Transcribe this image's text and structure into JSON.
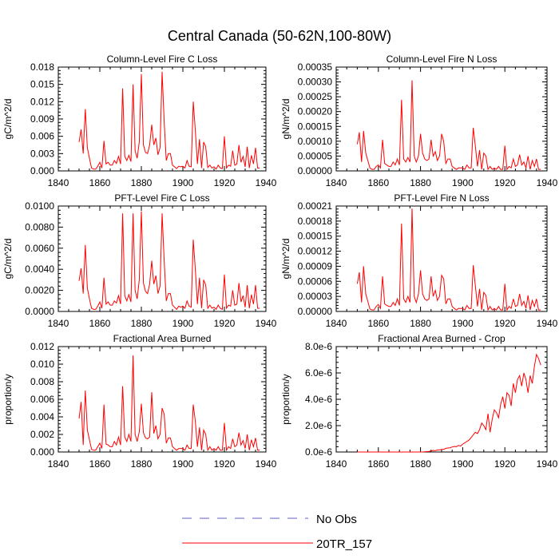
{
  "figure": {
    "title": "Central Canada (50-62N,100-80W)",
    "line_color": "#ff0000",
    "obs_color": "#6060c0"
  },
  "legend": {
    "entries": [
      {
        "label": "No Obs",
        "style": "dashed"
      },
      {
        "label": "20TR_157",
        "style": "solid"
      }
    ]
  },
  "chart_data": [
    {
      "type": "line",
      "title": "Column-Level Fire C Loss",
      "ylabel": "gC/m^2/d",
      "xlim": [
        1840,
        1940
      ],
      "ylim": [
        0,
        0.018
      ],
      "x_ticks": [
        "1840",
        "1860",
        "1880",
        "1900",
        "1920",
        "1940"
      ],
      "y_ticks": [
        "0.000",
        "0.003",
        "0.006",
        "0.009",
        "0.012",
        "0.015",
        "0.018"
      ],
      "series": [
        {
          "name": "20TR_157",
          "x_start": 1850,
          "values": [
            0.005,
            0.0072,
            0.003,
            0.0107,
            0.004,
            0.0022,
            0.0005,
            0.0003,
            0.0003,
            0.0008,
            0.0015,
            0.0005,
            0.0052,
            0.0012,
            0.0015,
            0.001,
            0.001,
            0.0018,
            0.0013,
            0.0025,
            0.0012,
            0.0143,
            0.0025,
            0.0018,
            0.0027,
            0.0016,
            0.015,
            0.0035,
            0.0022,
            0.005,
            0.0168,
            0.0045,
            0.0032,
            0.003,
            0.0045,
            0.008,
            0.0045,
            0.0057,
            0.0028,
            0.004,
            0.0172,
            0.0085,
            0.0018,
            0.003,
            0.003,
            0.001,
            0.0007,
            0.0004,
            0.0008,
            0.0007,
            0.0008,
            0.0005,
            0.0018,
            0.0008,
            0.0007,
            0.012,
            0.007,
            0.0012,
            0.0055,
            0.0005,
            0.005,
            0.0042,
            0.0006,
            0.001,
            0.0005,
            0.0007,
            0.0003,
            0.001,
            0.0005,
            0.0004,
            0.006,
            0.0005,
            0.001,
            0.0008,
            0.0035,
            0.001,
            0.0012,
            0.0045,
            0.0015,
            0.0025,
            0.0007,
            0.0042,
            0.0005,
            0.0027,
            0.0012,
            0.004,
            0.0005,
            0.0005
          ]
        }
      ]
    },
    {
      "type": "line",
      "title": "Column-Level Fire N Loss",
      "ylabel": "gN/m^2/d",
      "xlim": [
        1840,
        1940
      ],
      "ylim": [
        0,
        0.00035
      ],
      "x_ticks": [
        "1840",
        "1860",
        "1880",
        "1900",
        "1920",
        "1940"
      ],
      "y_ticks": [
        "0.00000",
        "0.00005",
        "0.00010",
        "0.00015",
        "0.00020",
        "0.00025",
        "0.00030",
        "0.00035"
      ],
      "series": [
        {
          "name": "20TR_157",
          "x_start": 1850,
          "values": [
            9e-05,
            0.00013,
            3e-05,
            0.000135,
            6e-05,
            3.5e-05,
            1e-05,
            5e-06,
            5e-06,
            1.5e-05,
            2e-05,
            1e-05,
            0.000105,
            2.5e-05,
            2e-05,
            1.5e-05,
            1.5e-05,
            3e-05,
            2e-05,
            4e-05,
            2e-05,
            0.00024,
            4e-05,
            3e-05,
            4.5e-05,
            3e-05,
            0.000305,
            5e-05,
            3e-05,
            5e-05,
            0.000125,
            6e-05,
            4e-05,
            3.5e-05,
            4e-05,
            0.000105,
            5e-05,
            6.5e-05,
            3.5e-05,
            5e-05,
            0.000125,
            0.0001,
            2.5e-05,
            4e-05,
            4e-05,
            1.5e-05,
            1e-05,
            5e-06,
            1e-05,
            1e-05,
            1e-05,
            5e-06,
            2e-05,
            1e-05,
            1e-05,
            0.000145,
            8.5e-05,
            1.5e-05,
            7e-05,
            5e-06,
            6e-05,
            5e-05,
            5e-06,
            1.5e-05,
            5e-06,
            1e-05,
            5e-06,
            1.5e-05,
            5e-06,
            5e-06,
            8.5e-05,
            5e-06,
            1.5e-05,
            1e-05,
            4e-05,
            1.5e-05,
            2e-05,
            5.5e-05,
            2e-05,
            3e-05,
            1e-05,
            5e-05,
            5e-06,
            3.5e-05,
            1.5e-05,
            4e-05,
            5e-06,
            5e-06
          ]
        }
      ]
    },
    {
      "type": "line",
      "title": "PFT-Level Fire C Loss",
      "ylabel": "gC/m^2/d",
      "xlim": [
        1840,
        1940
      ],
      "ylim": [
        0,
        0.01
      ],
      "x_ticks": [
        "1840",
        "1860",
        "1880",
        "1900",
        "1920",
        "1940"
      ],
      "y_ticks": [
        "0.0000",
        "0.0020",
        "0.0040",
        "0.0060",
        "0.0080",
        "0.0100"
      ],
      "series": [
        {
          "name": "20TR_157",
          "x_start": 1850,
          "values": [
            0.0029,
            0.0041,
            0.0017,
            0.0063,
            0.0022,
            0.0012,
            0.0003,
            0.0002,
            0.0002,
            0.0005,
            0.0009,
            0.0003,
            0.0032,
            0.0007,
            0.0009,
            0.0006,
            0.0006,
            0.001,
            0.0008,
            0.0015,
            0.0007,
            0.0093,
            0.0015,
            0.001,
            0.0016,
            0.0009,
            0.0093,
            0.002,
            0.0012,
            0.003,
            0.0095,
            0.0027,
            0.0019,
            0.0017,
            0.0026,
            0.0048,
            0.0026,
            0.0034,
            0.0017,
            0.0024,
            0.0093,
            0.0048,
            0.001,
            0.0017,
            0.0017,
            0.0006,
            0.0004,
            0.0002,
            0.0005,
            0.0004,
            0.0005,
            0.0003,
            0.001,
            0.0005,
            0.0004,
            0.0068,
            0.004,
            0.0007,
            0.0032,
            0.0003,
            0.003,
            0.0025,
            0.0003,
            0.0006,
            0.0003,
            0.0004,
            0.0002,
            0.0006,
            0.0003,
            0.0002,
            0.0035,
            0.0003,
            0.0006,
            0.0005,
            0.002,
            0.0006,
            0.0007,
            0.0027,
            0.0009,
            0.0015,
            0.0004,
            0.0025,
            0.0003,
            0.0016,
            0.0007,
            0.0025,
            0.0003,
            0.0003
          ]
        }
      ]
    },
    {
      "type": "line",
      "title": "PFT-Level Fire N Loss",
      "ylabel": "gN/m^2/d",
      "xlim": [
        1840,
        1940
      ],
      "ylim": [
        0,
        0.00021
      ],
      "x_ticks": [
        "1840",
        "1860",
        "1880",
        "1900",
        "1920",
        "1940"
      ],
      "y_ticks": [
        "0.00000",
        "0.00003",
        "0.00006",
        "0.00009",
        "0.00012",
        "0.00015",
        "0.00018",
        "0.00021"
      ],
      "series": [
        {
          "name": "20TR_157",
          "x_start": 1850,
          "values": [
            5.5e-05,
            7.8e-05,
            1.8e-05,
            9e-05,
            3.5e-05,
            2e-05,
            5e-06,
            3e-06,
            3e-06,
            1e-05,
            1.4e-05,
            6e-06,
            7e-05,
            1.5e-05,
            1.2e-05,
            1e-05,
            1e-05,
            1.8e-05,
            1.2e-05,
            2.5e-05,
            1.2e-05,
            0.000175,
            2.5e-05,
            1.8e-05,
            3e-05,
            1.8e-05,
            0.000205,
            3e-05,
            1.8e-05,
            3.5e-05,
            8.2e-05,
            3.5e-05,
            2.5e-05,
            2.2e-05,
            2.5e-05,
            7e-05,
            3e-05,
            4.2e-05,
            2.2e-05,
            3e-05,
            7.2e-05,
            6.5e-05,
            1.5e-05,
            2.5e-05,
            2.5e-05,
            1e-05,
            6e-06,
            3e-06,
            6e-06,
            6e-06,
            6e-06,
            3e-06,
            1.2e-05,
            6e-06,
            6e-06,
            9.2e-05,
            5.2e-05,
            1e-05,
            4.5e-05,
            3e-06,
            3.8e-05,
            3.2e-05,
            3e-06,
            1e-05,
            3e-06,
            6e-06,
            3e-06,
            1e-05,
            3e-06,
            3e-06,
            5.5e-05,
            3e-06,
            1e-05,
            6e-06,
            2.5e-05,
            1e-05,
            1.2e-05,
            3.5e-05,
            1.2e-05,
            2e-05,
            6e-06,
            3.2e-05,
            3e-06,
            2.2e-05,
            1e-05,
            2.5e-05,
            3e-06,
            3e-06
          ]
        }
      ]
    },
    {
      "type": "line",
      "title": "Fractional Area Burned",
      "ylabel": "proportion/y",
      "xlim": [
        1840,
        1940
      ],
      "ylim": [
        0,
        0.012
      ],
      "x_ticks": [
        "1840",
        "1860",
        "1880",
        "1900",
        "1920",
        "1940"
      ],
      "y_ticks": [
        "0.000",
        "0.002",
        "0.004",
        "0.006",
        "0.008",
        "0.010",
        "0.012"
      ],
      "series": [
        {
          "name": "20TR_157",
          "x_start": 1850,
          "values": [
            0.0038,
            0.0057,
            0.0008,
            0.007,
            0.0025,
            0.0014,
            0.0003,
            0.0002,
            0.0002,
            0.0006,
            0.001,
            0.0004,
            0.0054,
            0.0009,
            0.0008,
            0.0006,
            0.0006,
            0.0012,
            0.0008,
            0.0017,
            0.0008,
            0.0075,
            0.0017,
            0.0012,
            0.002,
            0.0012,
            0.011,
            0.002,
            0.0012,
            0.0023,
            0.0055,
            0.0022,
            0.0016,
            0.0015,
            0.0017,
            0.0068,
            0.0021,
            0.003,
            0.0015,
            0.002,
            0.005,
            0.0043,
            0.001,
            0.0016,
            0.0016,
            0.0006,
            0.0004,
            0.0002,
            0.0004,
            0.0004,
            0.0004,
            0.0002,
            0.0008,
            0.0004,
            0.0004,
            0.0054,
            0.0035,
            0.0006,
            0.0028,
            0.0002,
            0.0025,
            0.002,
            0.0002,
            0.0006,
            0.0002,
            0.0004,
            0.0002,
            0.0006,
            0.0002,
            0.0002,
            0.0033,
            0.0002,
            0.0006,
            0.0004,
            0.0015,
            0.0006,
            0.0008,
            0.0022,
            0.0008,
            0.0013,
            0.0004,
            0.002,
            0.0002,
            0.0014,
            0.0006,
            0.0016,
            0.0002,
            0.0002
          ]
        }
      ]
    },
    {
      "type": "line",
      "title": "Fractional Area Burned - Crop",
      "ylabel": "proportion/y",
      "xlim": [
        1840,
        1940
      ],
      "ylim": [
        0,
        8e-06
      ],
      "x_ticks": [
        "1840",
        "1860",
        "1880",
        "1900",
        "1920",
        "1940"
      ],
      "y_ticks": [
        "0.0e-6",
        "2.0e-6",
        "4.0e-6",
        "6.0e-6",
        "8.0e-6"
      ],
      "series": [
        {
          "name": "20TR_157",
          "x_start": 1850,
          "values": [
            0,
            0,
            0,
            0,
            0,
            0,
            0,
            0,
            0,
            0,
            0,
            0,
            0,
            0,
            0,
            0,
            0,
            0,
            0,
            0,
            0,
            0,
            0,
            0,
            0,
            0,
            0,
            0,
            0,
            0,
            0,
            0,
            2e-08,
            3e-08,
            5e-08,
            8e-08,
            1.2e-07,
            1e-07,
            1.5e-07,
            1.5e-07,
            2e-07,
            2e-07,
            2.8e-07,
            3e-07,
            3.2e-07,
            3.8e-07,
            4.2e-07,
            4e-07,
            5e-07,
            4.5e-07,
            6e-07,
            7e-07,
            8e-07,
            9e-07,
            1.1e-06,
            1.3e-06,
            1.5e-06,
            1.4e-06,
            1.7e-06,
            2.2e-06,
            2e-06,
            1.7e-06,
            2.9e-06,
            1.5e-06,
            2.5e-06,
            3.2e-06,
            3e-06,
            2.6e-06,
            3.6e-06,
            4.2e-06,
            3.3e-06,
            4.5e-06,
            4.3e-06,
            3.5e-06,
            5.2e-06,
            4.5e-06,
            5.5e-06,
            5.8e-06,
            5e-06,
            6e-06,
            5.5e-06,
            4.5e-06,
            5.8e-06,
            5.2e-06,
            6.5e-06,
            7.4e-06,
            7.1e-06,
            6.6e-06
          ]
        }
      ]
    }
  ]
}
